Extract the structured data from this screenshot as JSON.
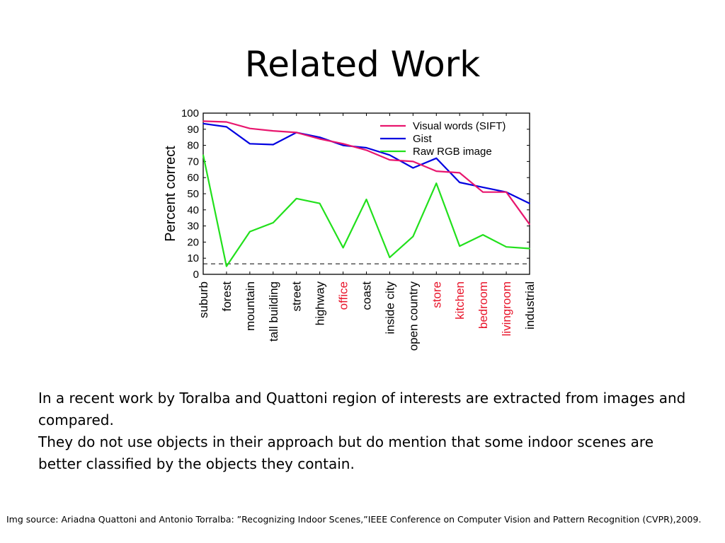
{
  "slide": {
    "title": "Related Work",
    "paragraph_1": "In a recent work by Toralba and Quattoni region of interests are extracted from images and compared.",
    "paragraph_2": "They do not use objects in their approach but do mention that some indoor scenes are better classified by the objects they contain.",
    "source": "Img source: Ariadna Quattoni and Antonio Torralba: ”Recognizing Indoor Scenes,”IEEE Conference on Computer Vision and Pattern Recognition (CVPR),2009."
  },
  "chart_data": {
    "type": "line",
    "ylabel": "Percent correct",
    "xlabel": "",
    "ylim": [
      0,
      100
    ],
    "yticks": [
      0,
      10,
      20,
      30,
      40,
      50,
      60,
      70,
      80,
      90,
      100
    ],
    "categories": [
      "suburb",
      "forest",
      "mountain",
      "tall building",
      "street",
      "highway",
      "office",
      "coast",
      "inside city",
      "open country",
      "store",
      "kitchen",
      "bedroom",
      "livingroom",
      "industrial"
    ],
    "category_colors": [
      "#000000",
      "#000000",
      "#000000",
      "#000000",
      "#000000",
      "#000000",
      "#e8142a",
      "#000000",
      "#000000",
      "#000000",
      "#e8142a",
      "#e8142a",
      "#e8142a",
      "#e8142a",
      "#000000"
    ],
    "series": [
      {
        "name": "Visual words (SIFT)",
        "color": "#e8166e",
        "values": [
          95,
          94.5,
          90.5,
          89,
          88,
          84,
          81,
          77,
          71,
          70,
          64,
          63,
          51,
          51,
          31
        ]
      },
      {
        "name": "Gist",
        "color": "#0000e0",
        "values": [
          93.5,
          91.5,
          81,
          80.5,
          88,
          85,
          80,
          78.5,
          74,
          66,
          72,
          57,
          54,
          51,
          44
        ]
      },
      {
        "name": "Raw RGB image",
        "color": "#22e01c",
        "values": [
          74,
          5,
          26.5,
          32,
          47,
          44,
          16.5,
          46.5,
          10.5,
          23.5,
          56.5,
          17.5,
          24.5,
          17,
          16
        ]
      }
    ],
    "chance_line": 6.5,
    "legend_position": "top-right",
    "grid": false
  }
}
